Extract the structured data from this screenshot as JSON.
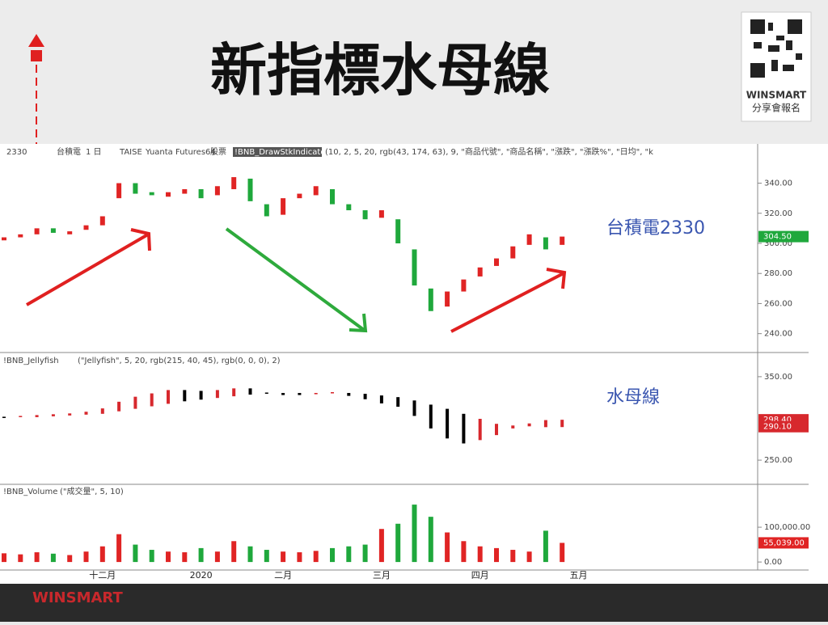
{
  "slide": {
    "title": "新指標水母線",
    "brand": "WINSMART",
    "signup": "分享會報名",
    "footer_brand": "WINSMART"
  },
  "chart_data": [
    {
      "type": "candlestick",
      "symbol": "2330",
      "name": "台積電",
      "period": "1 日",
      "exchange": "TAISE",
      "feed": "Yuanta Futures64",
      "kind": "股票",
      "indicator": "!BNB_DrawStkIndicators",
      "params": "(10, 2, 5, 20, rgb(43, 174, 63), 9, \"商品代號\", \"商品名稱\", \"漲跌\", \"漲跌%\", \"日均\", \"k",
      "annotation": "台積電2330",
      "categories": [
        null,
        null,
        null,
        null,
        null,
        null,
        "十二月",
        null,
        null,
        null,
        null,
        null,
        "2020",
        null,
        null,
        null,
        null,
        "二月",
        null,
        null,
        null,
        null,
        null,
        "三月",
        null,
        null,
        null,
        null,
        null,
        "四月",
        null,
        null,
        null,
        null,
        null,
        "五月"
      ],
      "open": [
        302,
        304,
        306,
        310,
        306,
        309,
        312,
        330,
        340,
        334,
        331,
        333,
        336,
        332,
        336,
        343,
        326,
        319,
        330,
        332,
        336,
        326,
        322,
        317,
        316,
        296,
        270,
        258,
        268,
        278,
        285,
        290,
        299,
        304,
        299,
        null
      ],
      "close": [
        304,
        306,
        310,
        307,
        308,
        312,
        318,
        340,
        333,
        332,
        334,
        336,
        330,
        338,
        344,
        328,
        318,
        330,
        333,
        338,
        326,
        322,
        316,
        322,
        300,
        272,
        255,
        268,
        276,
        284,
        290,
        298,
        306,
        296,
        304.5,
        null
      ],
      "up_color": "#e02424",
      "down_color": "#1fa83c",
      "ylim": [
        228,
        365
      ],
      "yticks": [
        {
          "value": 240,
          "label": "240.00"
        },
        {
          "value": 260,
          "label": "260.00"
        },
        {
          "value": 280,
          "label": "280.00"
        },
        {
          "value": 300,
          "label": "300.00"
        },
        {
          "value": 320,
          "label": "320.00"
        },
        {
          "value": 340,
          "label": "340.00"
        }
      ],
      "last": {
        "value": 304.5,
        "label": "304.50"
      }
    },
    {
      "type": "jellyfish",
      "indicator": "!BNB_Jellyfish",
      "params": "(\"Jellyfish\", 5, 20, rgb(215, 40, 45), rgb(0, 0, 0), 2)",
      "annotation": "水母線",
      "fast": [
        302,
        303,
        304,
        305,
        306,
        308,
        312,
        320,
        326,
        330,
        334,
        334,
        333,
        334,
        336,
        336,
        331,
        328,
        328,
        329,
        330,
        327,
        323,
        318,
        314,
        303,
        288,
        276,
        270,
        274,
        280,
        288,
        294,
        298,
        298.4,
        null
      ],
      "slow": [
        301,
        302,
        302,
        303,
        304,
        305,
        306,
        309,
        312,
        315,
        318,
        321,
        323,
        325,
        327,
        329,
        330,
        331,
        331,
        331,
        332,
        331,
        330,
        328,
        326,
        322,
        317,
        312,
        306,
        300,
        294,
        292,
        291,
        290,
        290.1,
        null
      ],
      "up_color": "#d7282d",
      "down_color": "#000000",
      "ylim": [
        222,
        378
      ],
      "yticks": [
        {
          "value": 250,
          "label": "250.00"
        },
        {
          "value": 350,
          "label": "350.00"
        }
      ],
      "last": [
        {
          "value": 298.4,
          "label": "298.40"
        },
        {
          "value": 290.1,
          "label": "290.10"
        }
      ]
    },
    {
      "type": "bar",
      "indicator": "!BNB_Volume",
      "params": "(\"成交量\", 5, 10)",
      "values": [
        25000,
        22000,
        28000,
        24000,
        20000,
        30000,
        45000,
        80000,
        50000,
        35000,
        30000,
        28000,
        40000,
        30000,
        60000,
        45000,
        35000,
        30000,
        28000,
        32000,
        40000,
        45000,
        50000,
        95000,
        110000,
        165000,
        130000,
        85000,
        60000,
        45000,
        40000,
        35000,
        30000,
        90000,
        55039,
        null
      ],
      "ylim": [
        -23000,
        221000
      ],
      "yticks": [
        {
          "value": 0,
          "label": "0.00"
        },
        {
          "value": 100000,
          "label": "100,000.00"
        }
      ],
      "last": {
        "value": 55039,
        "label": "55,039.00"
      }
    }
  ]
}
